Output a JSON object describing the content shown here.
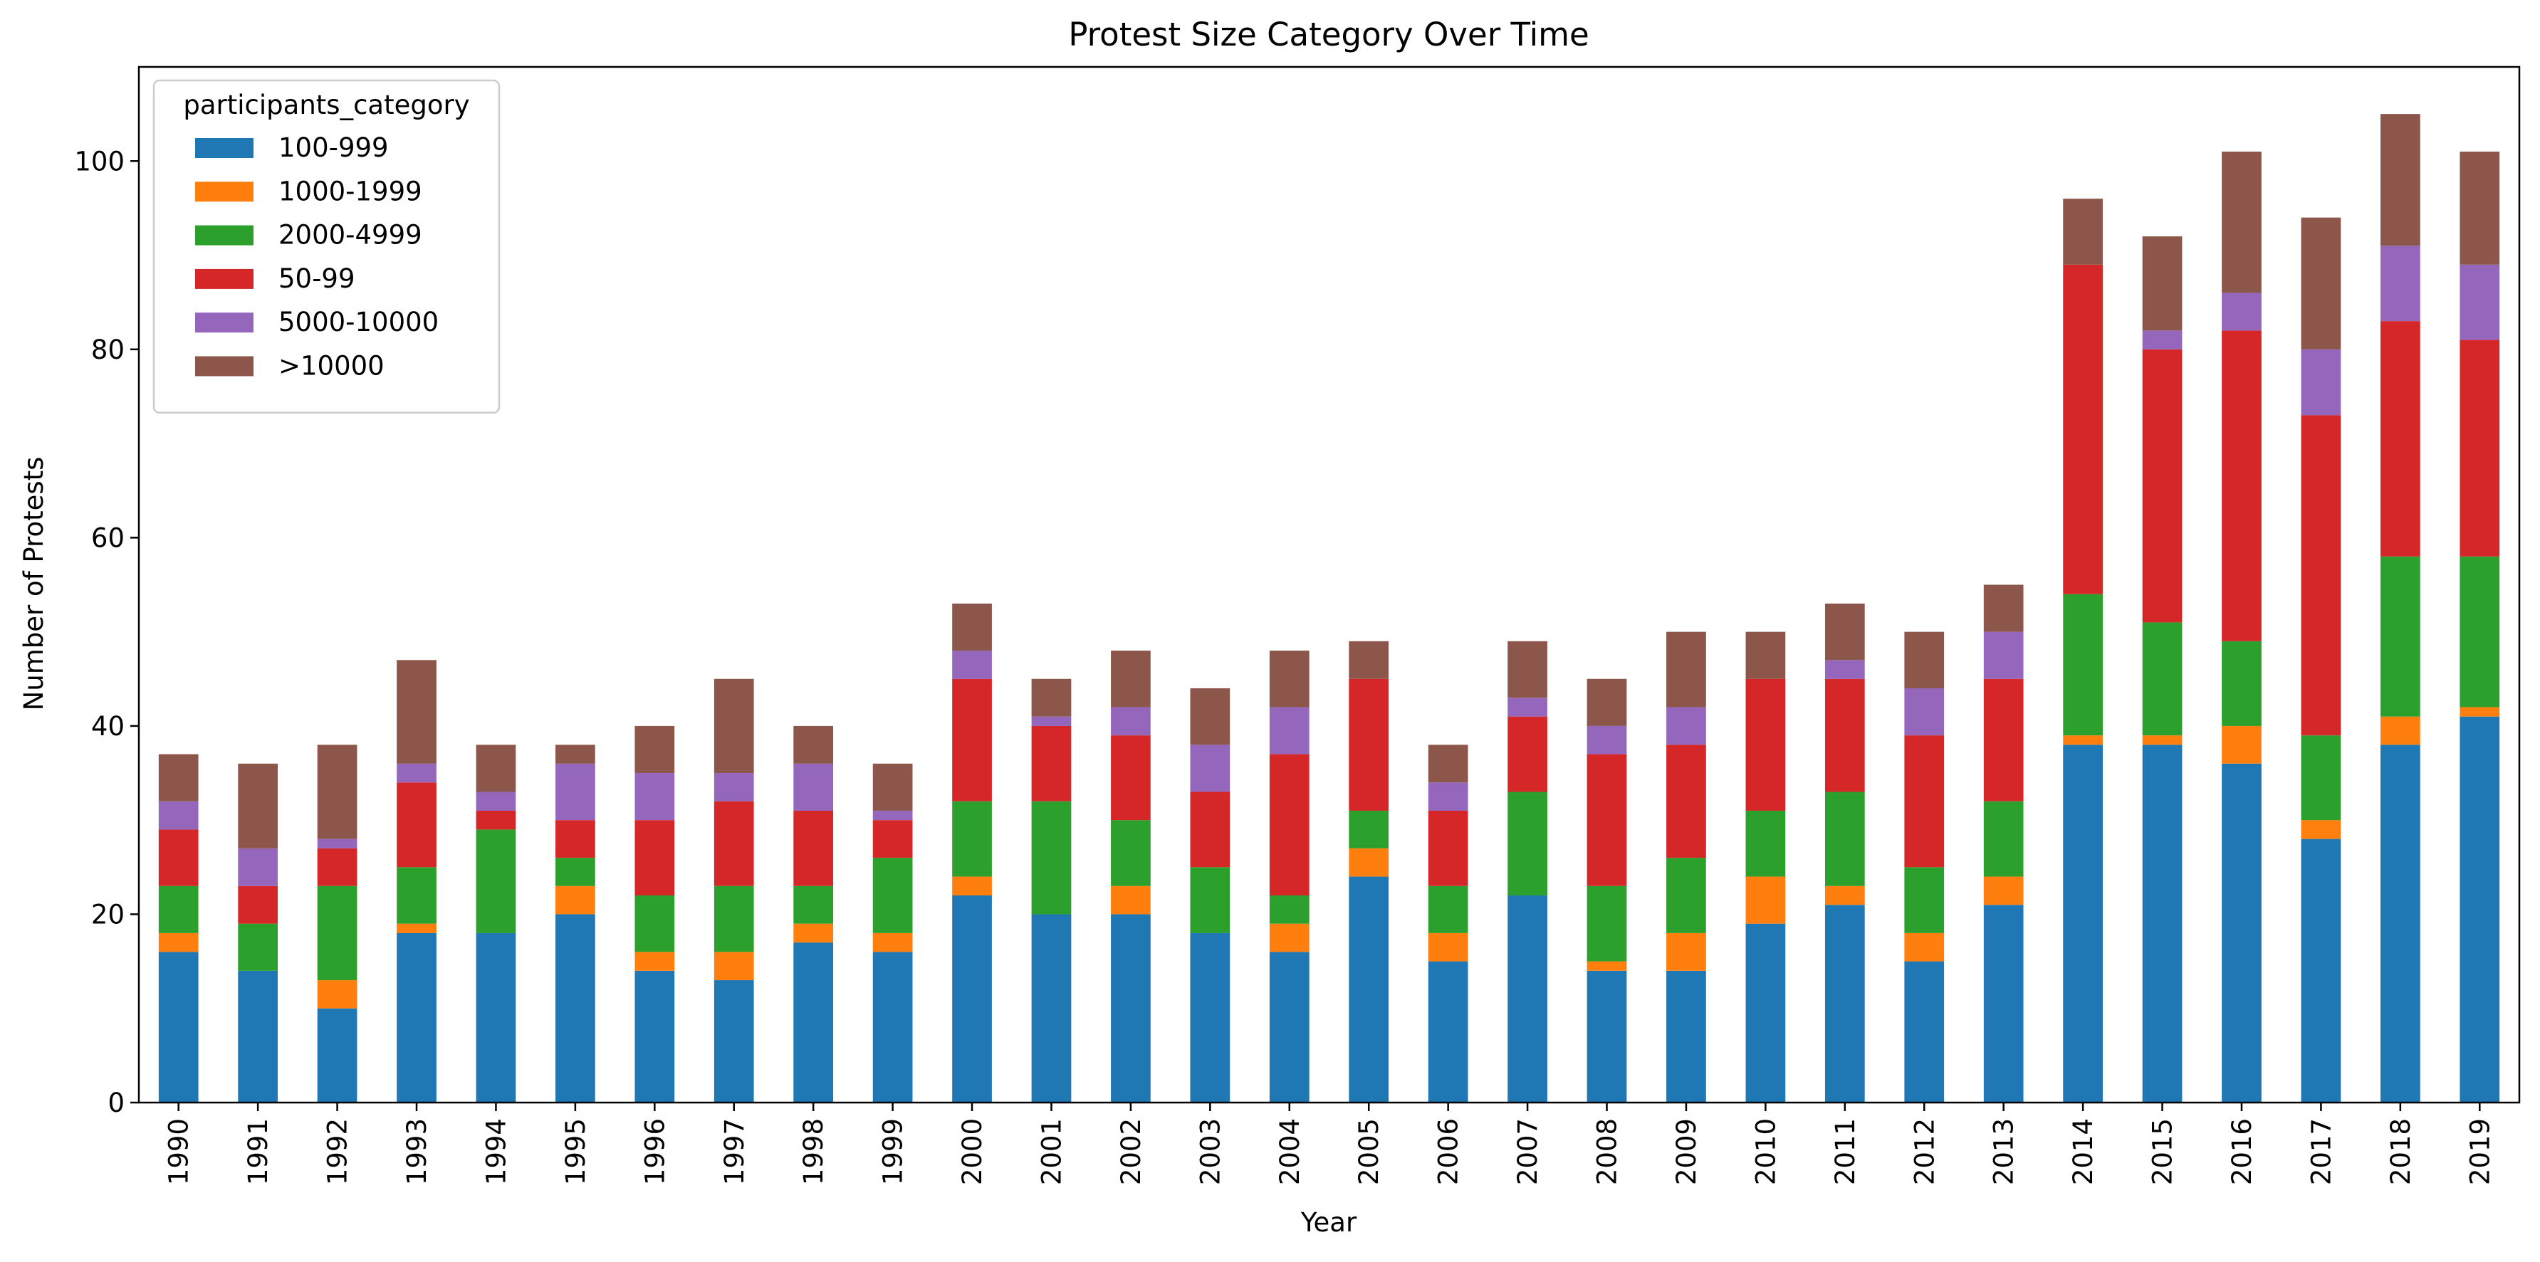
{
  "chart_data": {
    "type": "bar",
    "stacked": true,
    "title": "Protest Size Category Over Time",
    "xlabel": "Year",
    "ylabel": "Number of Protests",
    "ylim": [
      0,
      110
    ],
    "yticks": [
      0,
      20,
      40,
      60,
      80,
      100
    ],
    "grid": false,
    "legend": {
      "title": "participants_category",
      "placement": "top-left"
    },
    "categories": [
      "1990",
      "1991",
      "1992",
      "1993",
      "1994",
      "1995",
      "1996",
      "1997",
      "1998",
      "1999",
      "2000",
      "2001",
      "2002",
      "2003",
      "2004",
      "2005",
      "2006",
      "2007",
      "2008",
      "2009",
      "2010",
      "2011",
      "2012",
      "2013",
      "2014",
      "2015",
      "2016",
      "2017",
      "2018",
      "2019"
    ],
    "series": [
      {
        "name": "100-999",
        "color": "#1f77b4",
        "values": [
          16,
          14,
          10,
          18,
          18,
          20,
          14,
          13,
          17,
          16,
          22,
          20,
          20,
          18,
          16,
          24,
          15,
          22,
          14,
          14,
          19,
          21,
          15,
          21,
          38,
          38,
          36,
          28,
          38,
          41
        ]
      },
      {
        "name": "1000-1999",
        "color": "#ff7f0e",
        "values": [
          2,
          0,
          3,
          1,
          0,
          3,
          2,
          3,
          2,
          2,
          2,
          0,
          3,
          0,
          3,
          3,
          3,
          0,
          1,
          4,
          5,
          2,
          3,
          3,
          1,
          1,
          4,
          2,
          3,
          1
        ]
      },
      {
        "name": "2000-4999",
        "color": "#2ca02c",
        "values": [
          5,
          5,
          10,
          6,
          11,
          3,
          6,
          7,
          4,
          8,
          8,
          12,
          7,
          7,
          3,
          4,
          5,
          11,
          8,
          8,
          7,
          10,
          7,
          8,
          15,
          12,
          9,
          9,
          17,
          16
        ]
      },
      {
        "name": "50-99",
        "color": "#d62728",
        "values": [
          6,
          4,
          4,
          9,
          2,
          4,
          8,
          9,
          8,
          4,
          13,
          8,
          9,
          8,
          15,
          14,
          8,
          8,
          14,
          12,
          14,
          12,
          14,
          13,
          35,
          29,
          33,
          34,
          25,
          23
        ]
      },
      {
        "name": "5000-10000",
        "color": "#9467bd",
        "values": [
          3,
          4,
          1,
          2,
          2,
          6,
          5,
          3,
          5,
          1,
          3,
          1,
          3,
          5,
          5,
          0,
          3,
          2,
          3,
          4,
          0,
          2,
          5,
          5,
          0,
          2,
          4,
          7,
          8,
          8
        ]
      },
      {
        "name": ">10000",
        "color": "#8c564b",
        "values": [
          5,
          9,
          10,
          11,
          5,
          2,
          5,
          10,
          4,
          5,
          5,
          4,
          6,
          6,
          6,
          4,
          4,
          6,
          5,
          8,
          5,
          6,
          6,
          5,
          7,
          10,
          15,
          14,
          14,
          12
        ]
      }
    ]
  }
}
